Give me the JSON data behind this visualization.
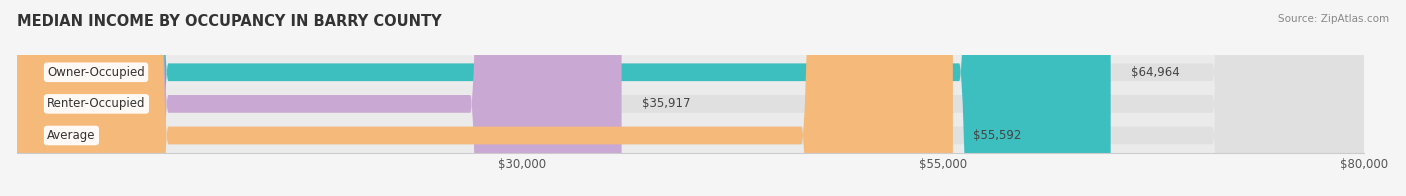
{
  "title": "MEDIAN INCOME BY OCCUPANCY IN BARRY COUNTY",
  "source": "Source: ZipAtlas.com",
  "categories": [
    "Owner-Occupied",
    "Renter-Occupied",
    "Average"
  ],
  "values": [
    64964,
    35917,
    55592
  ],
  "bar_colors": [
    "#3dbfbf",
    "#c9a8d4",
    "#f5b97a"
  ],
  "label_texts": [
    "$64,964",
    "$35,917",
    "$55,592"
  ],
  "xlim": [
    0,
    80000
  ],
  "xticks": [
    30000,
    55000,
    80000
  ],
  "xtick_labels": [
    "$30,000",
    "$55,000",
    "$80,000"
  ],
  "fig_bg_color": "#f5f5f5",
  "ax_bg_color": "#ebebeb",
  "bar_bg_color": "#e0e0e0",
  "title_fontsize": 10.5,
  "label_fontsize": 8.5,
  "tick_fontsize": 8.5,
  "bar_height": 0.56
}
